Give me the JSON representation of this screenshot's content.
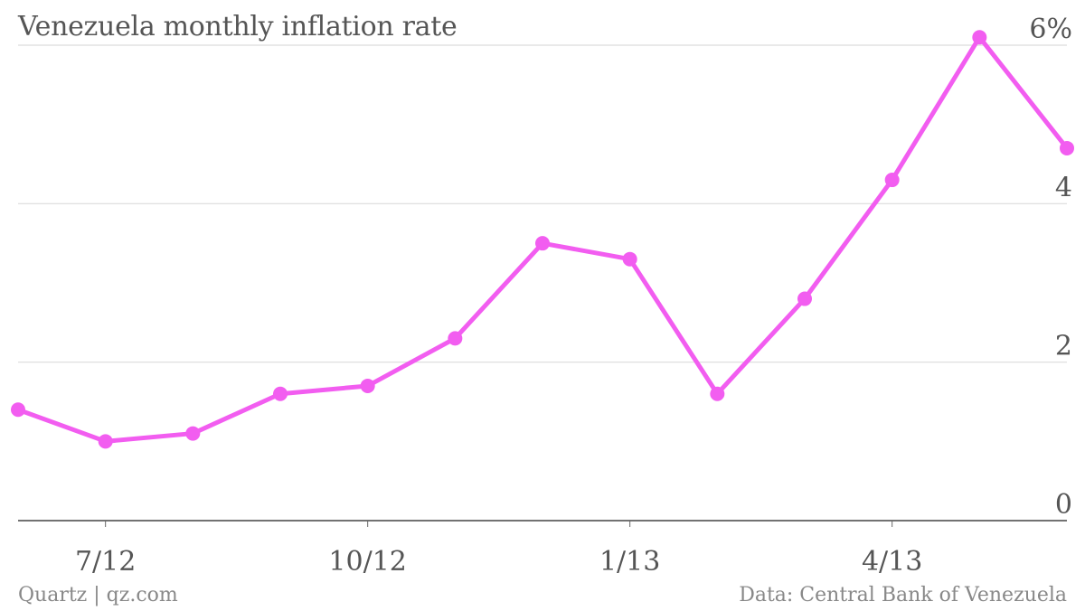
{
  "footer": {
    "credit": "Quartz | qz.com",
    "source": "Data: Central Bank of Venezuela"
  },
  "chart_data": {
    "type": "line",
    "title": "Venezuela monthly inflation rate",
    "xlabel": "",
    "ylabel": "",
    "x": [
      "6/12",
      "7/12",
      "8/12",
      "9/12",
      "10/12",
      "11/12",
      "12/12",
      "1/13",
      "2/13",
      "3/13",
      "4/13",
      "5/13",
      "6/13"
    ],
    "series": [
      {
        "values": [
          1.4,
          1.0,
          1.1,
          1.6,
          1.7,
          2.3,
          3.5,
          3.3,
          1.6,
          2.8,
          4.3,
          6.1,
          4.7
        ]
      }
    ],
    "x_ticks": [
      {
        "label": "7/12",
        "index": 1
      },
      {
        "label": "10/12",
        "index": 4
      },
      {
        "label": "1/13",
        "index": 7
      },
      {
        "label": "4/13",
        "index": 10
      }
    ],
    "y_ticks": [
      {
        "value": 0,
        "label": "0"
      },
      {
        "value": 2,
        "label": "2"
      },
      {
        "value": 4,
        "label": "4"
      },
      {
        "value": 6,
        "label": "6%"
      }
    ],
    "ylim": [
      0,
      6
    ],
    "grid": true,
    "legend": "none",
    "color": "#f25df0"
  }
}
